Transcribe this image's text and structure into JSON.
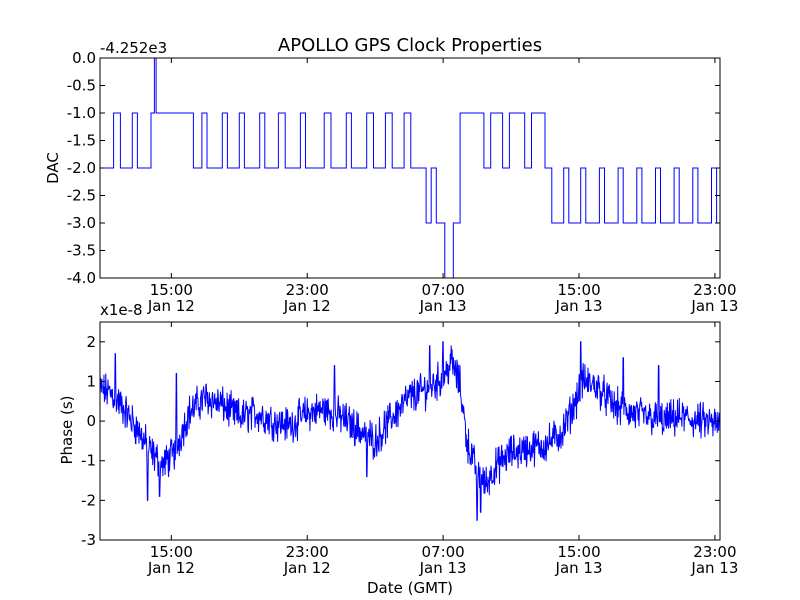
{
  "title": "APOLLO GPS Clock Properties",
  "xlabel": "Date (GMT)",
  "colors": {
    "series": "#0000ff",
    "axis": "#000000",
    "background": "#ffffff"
  },
  "chart_data": [
    {
      "type": "line",
      "name": "dac",
      "title": "APOLLO GPS Clock Properties",
      "ylabel": "DAC",
      "offset_label": "-4.252e3",
      "ylim": [
        -4.0,
        0.0
      ],
      "yticks": [
        0.0,
        -0.5,
        -1.0,
        -1.5,
        -2.0,
        -2.5,
        -3.0,
        -3.5,
        -4.0
      ],
      "ytick_labels": [
        "0.0",
        "-0.5",
        "-1.0",
        "-1.5",
        "-2.0",
        "-2.5",
        "-3.0",
        "-3.5",
        "-4.0"
      ],
      "xlim_hours": [
        10.8,
        47.3
      ],
      "xticks_hours": [
        15,
        23,
        31,
        39,
        47
      ],
      "xtick_labels_time": [
        "15:00",
        "23:00",
        "07:00",
        "15:00",
        "23:00"
      ],
      "xtick_labels_date": [
        "Jan 12",
        "Jan 12",
        "Jan 13",
        "Jan 13",
        "Jan 13"
      ],
      "segments": [
        [
          10.8,
          -2
        ],
        [
          11.6,
          -1
        ],
        [
          12.0,
          -2
        ],
        [
          12.7,
          -1
        ],
        [
          13.0,
          -2
        ],
        [
          13.8,
          -1
        ],
        [
          14.0,
          0
        ],
        [
          14.1,
          -1
        ],
        [
          16.3,
          -2
        ],
        [
          16.8,
          -1
        ],
        [
          17.1,
          -2
        ],
        [
          18.0,
          -1
        ],
        [
          18.3,
          -2
        ],
        [
          19.0,
          -1
        ],
        [
          19.3,
          -2
        ],
        [
          20.2,
          -1
        ],
        [
          20.5,
          -2
        ],
        [
          21.3,
          -1
        ],
        [
          21.7,
          -2
        ],
        [
          22.6,
          -1
        ],
        [
          22.9,
          -2
        ],
        [
          24.0,
          -1
        ],
        [
          24.4,
          -2
        ],
        [
          25.3,
          -1
        ],
        [
          25.6,
          -2
        ],
        [
          26.5,
          -1
        ],
        [
          26.9,
          -2
        ],
        [
          27.6,
          -1
        ],
        [
          28.0,
          -2
        ],
        [
          28.7,
          -1
        ],
        [
          29.1,
          -2
        ],
        [
          30.0,
          -3
        ],
        [
          30.3,
          -2
        ],
        [
          30.6,
          -3
        ],
        [
          31.1,
          -4
        ],
        [
          31.6,
          -3
        ],
        [
          32.0,
          -1
        ],
        [
          33.4,
          -2
        ],
        [
          33.8,
          -1
        ],
        [
          34.5,
          -2
        ],
        [
          34.9,
          -1
        ],
        [
          35.8,
          -2
        ],
        [
          36.2,
          -1
        ],
        [
          37.0,
          -2
        ],
        [
          37.4,
          -3
        ],
        [
          38.1,
          -2
        ],
        [
          38.4,
          -3
        ],
        [
          39.1,
          -2
        ],
        [
          39.4,
          -3
        ],
        [
          40.2,
          -2
        ],
        [
          40.5,
          -3
        ],
        [
          41.3,
          -2
        ],
        [
          41.6,
          -3
        ],
        [
          42.4,
          -2
        ],
        [
          42.7,
          -3
        ],
        [
          43.5,
          -2
        ],
        [
          43.8,
          -3
        ],
        [
          44.6,
          -2
        ],
        [
          44.9,
          -3
        ],
        [
          45.7,
          -2
        ],
        [
          46.0,
          -3
        ],
        [
          46.8,
          -2
        ],
        [
          47.1,
          -3
        ]
      ]
    },
    {
      "type": "line",
      "name": "phase",
      "ylabel": "Phase (s)",
      "offset_label": "x1e-8",
      "ylim": [
        -3,
        2.5
      ],
      "yticks": [
        2,
        1,
        0,
        -1,
        -2,
        -3
      ],
      "ytick_labels": [
        "2",
        "1",
        "0",
        "-1",
        "-2",
        "-3"
      ],
      "xlim_hours": [
        10.8,
        47.3
      ],
      "xticks_hours": [
        15,
        23,
        31,
        39,
        47
      ],
      "xtick_labels_time": [
        "15:00",
        "23:00",
        "07:00",
        "15:00",
        "23:00"
      ],
      "xtick_labels_date": [
        "Jan 12",
        "Jan 12",
        "Jan 13",
        "Jan 13",
        "Jan 13"
      ],
      "trend": [
        [
          10.8,
          0.8
        ],
        [
          11.5,
          0.7
        ],
        [
          12.2,
          0.3
        ],
        [
          13.0,
          -0.2
        ],
        [
          13.8,
          -0.8
        ],
        [
          14.5,
          -1.1
        ],
        [
          15.2,
          -0.8
        ],
        [
          16.0,
          0.2
        ],
        [
          17.0,
          0.6
        ],
        [
          18.0,
          0.4
        ],
        [
          19.0,
          0.1
        ],
        [
          20.0,
          0.2
        ],
        [
          21.0,
          0.0
        ],
        [
          22.0,
          -0.1
        ],
        [
          23.0,
          0.2
        ],
        [
          24.0,
          0.3
        ],
        [
          25.0,
          0.1
        ],
        [
          26.0,
          -0.2
        ],
        [
          27.0,
          -0.5
        ],
        [
          28.0,
          0.1
        ],
        [
          29.0,
          0.6
        ],
        [
          30.0,
          0.8
        ],
        [
          31.0,
          1.1
        ],
        [
          31.5,
          1.5
        ],
        [
          32.0,
          0.9
        ],
        [
          32.4,
          -0.5
        ],
        [
          33.0,
          -1.3
        ],
        [
          33.5,
          -1.6
        ],
        [
          34.0,
          -1.2
        ],
        [
          35.0,
          -0.8
        ],
        [
          36.0,
          -0.7
        ],
        [
          37.0,
          -0.6
        ],
        [
          38.0,
          -0.3
        ],
        [
          38.7,
          0.4
        ],
        [
          39.2,
          1.0
        ],
        [
          40.0,
          0.9
        ],
        [
          41.0,
          0.4
        ],
        [
          42.0,
          0.2
        ],
        [
          43.0,
          0.1
        ],
        [
          44.0,
          0.0
        ],
        [
          45.0,
          0.1
        ],
        [
          46.0,
          0.0
        ],
        [
          47.3,
          -0.1
        ]
      ],
      "noise_amplitude": 0.35,
      "spikes": [
        [
          11.7,
          1.7
        ],
        [
          13.6,
          -2.0
        ],
        [
          14.3,
          -1.9
        ],
        [
          30.2,
          1.9
        ],
        [
          31.0,
          2.0
        ],
        [
          33.0,
          -2.5
        ],
        [
          33.2,
          -2.3
        ],
        [
          39.1,
          2.0
        ],
        [
          41.6,
          1.6
        ],
        [
          43.7,
          1.4
        ],
        [
          26.5,
          -1.4
        ],
        [
          24.6,
          1.4
        ],
        [
          15.3,
          1.2
        ]
      ]
    }
  ]
}
